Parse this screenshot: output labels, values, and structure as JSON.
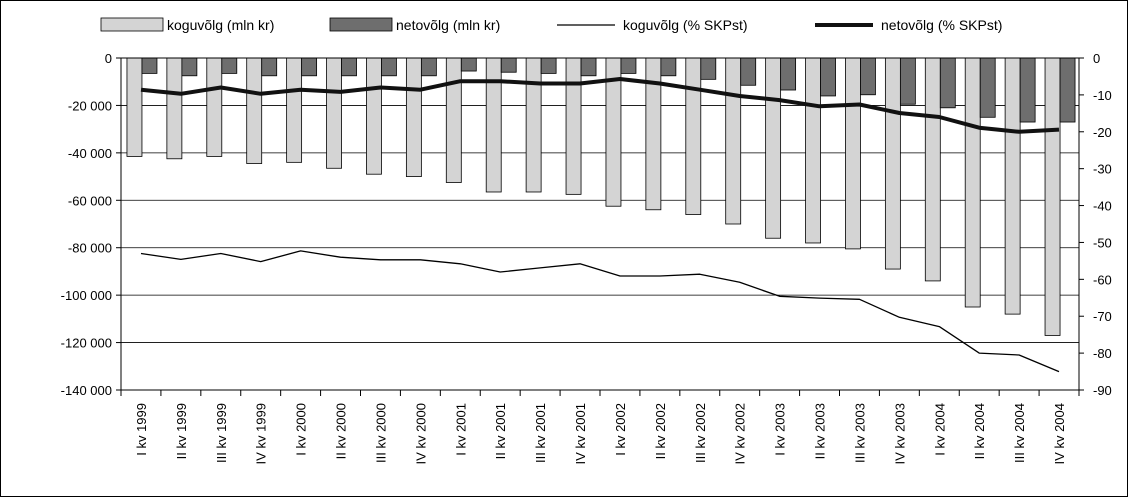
{
  "chart_data": {
    "type": "bar",
    "categories": [
      "I kv 1999",
      "II kv 1999",
      "III kv 1999",
      "IV kv 1999",
      "I kv 2000",
      "II kv 2000",
      "III kv 2000",
      "IV kv 2000",
      "I kv 2001",
      "II kv 2001",
      "III kv 2001",
      "IV kv 2001",
      "I kv 2002",
      "II kv 2002",
      "III kv 2002",
      "IV kv 2002",
      "I kv 2003",
      "II kv 2003",
      "III kv 2003",
      "IV kv 2003",
      "I kv 2004",
      "II kv 2004",
      "III kv 2004",
      "IV kv 2004"
    ],
    "series": [
      {
        "name": "koguvõlg (mln kr)",
        "kind": "bar",
        "axis": "left",
        "color": "#d4d4d4",
        "values": [
          -41500,
          -42500,
          -41500,
          -44500,
          -44000,
          -46500,
          -49000,
          -50000,
          -52500,
          -56500,
          -56500,
          -57500,
          -62500,
          -64000,
          -66000,
          -70000,
          -76000,
          -78000,
          -80500,
          -89000,
          -94000,
          -105000,
          -108000,
          -117000
        ]
      },
      {
        "name": "netovõlg (mln kr)",
        "kind": "bar",
        "axis": "left",
        "color": "#6e6e6e",
        "values": [
          -6500,
          -7500,
          -6500,
          -7500,
          -7500,
          -7500,
          -7500,
          -7500,
          -5500,
          -6000,
          -6500,
          -7500,
          -6500,
          -7500,
          -9000,
          -11500,
          -13500,
          -16000,
          -15500,
          -19500,
          -21000,
          -25000,
          -27000,
          -27000
        ]
      },
      {
        "name": "koguvõlg (% SKPst)",
        "kind": "line",
        "axis": "right",
        "color": "#000000",
        "values": [
          -53,
          -54.6,
          -53,
          -55.2,
          -52.3,
          -54,
          -54.7,
          -54.7,
          -55.8,
          -58,
          -56.9,
          -55.8,
          -59.1,
          -59.1,
          -58.6,
          -60.8,
          -64.6,
          -65.1,
          -65.4,
          -70.3,
          -72.8,
          -80,
          -80.5,
          -85
        ]
      },
      {
        "name": "netovõlg (% SKPst)",
        "kind": "line",
        "axis": "right",
        "color": "#111111",
        "values": [
          -8.6,
          -9.7,
          -8,
          -9.7,
          -8.6,
          -9.2,
          -8,
          -8.6,
          -6.3,
          -6.3,
          -6.9,
          -6.9,
          -5.7,
          -6.9,
          -8.6,
          -10.3,
          -11.4,
          -13.1,
          -12.6,
          -14.9,
          -16,
          -18.9,
          -20,
          -19.4
        ]
      }
    ],
    "y_left": {
      "ticks": [
        "0",
        "-20 000",
        "-40 000",
        "-60 000",
        "-80 000",
        "-100 000",
        "-120 000",
        "-140 000"
      ],
      "ylim": [
        -140000,
        0
      ]
    },
    "y_right": {
      "ticks": [
        "0",
        "-10",
        "-20",
        "-30",
        "-40",
        "-50",
        "-60",
        "-70",
        "-80",
        "-90"
      ],
      "ylim": [
        -90,
        0
      ]
    },
    "grid": true,
    "legend_position": "top"
  }
}
